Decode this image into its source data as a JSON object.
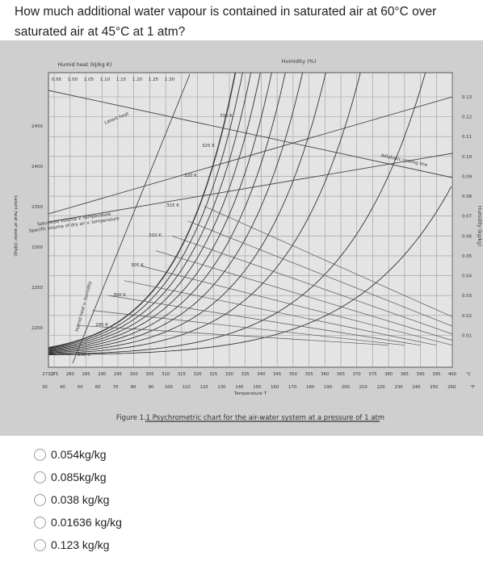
{
  "question": "How much additional water vapour is contained in saturated air at 60°C over saturated air at 45°C at 1 atm?",
  "figure": {
    "top_axis_label": "Humid heat (kJ/kg K)",
    "top_ticks": [
      "0.95",
      "1.00",
      "1.05",
      "1.10",
      "1.15",
      "1.20",
      "1.25",
      "1.30"
    ],
    "humidity_label": "Humidity (%)",
    "left_axis_label": "Latent heat of water (kJ/kg)",
    "left_ticks": [
      "2450",
      "2400",
      "2350",
      "2300",
      "2250",
      "2200"
    ],
    "right_axis_label": "Humidity (kg/kg)",
    "right_ticks": [
      "0.13",
      "0.12",
      "0.11",
      "0.10",
      "0.09",
      "0.08",
      "0.07",
      "0.06",
      "0.05",
      "0.04",
      "0.03",
      "0.02",
      "0.01"
    ],
    "kelvin_ticks": [
      "273.2",
      "275",
      "280",
      "285",
      "290",
      "295",
      "300",
      "305",
      "310",
      "315",
      "320",
      "325",
      "330",
      "335",
      "340",
      "345",
      "350",
      "355",
      "360",
      "365",
      "370",
      "375",
      "380",
      "385",
      "390",
      "395",
      "400",
      "°C"
    ],
    "fahrenheit_ticks": [
      "30",
      "40",
      "50",
      "60",
      "70",
      "80",
      "90",
      "100",
      "110",
      "120",
      "130",
      "140",
      "150",
      "160",
      "170",
      "180",
      "190",
      "200",
      "210",
      "220",
      "230",
      "240",
      "250",
      "260",
      "°F"
    ],
    "x_axis_label": "Temperature T",
    "curve_labels": [
      "Latent heat",
      "Saturated volume v. temperature",
      "Specific volume of dry air v. temperature",
      "Humid heat v. humidity",
      "Adiabatic cooling line"
    ],
    "isotherm_labels": [
      "330 K",
      "325 K",
      "320 K",
      "315 K",
      "310 K",
      "305 K",
      "300 K",
      "295 K",
      "290 K"
    ],
    "caption": "Figure 1.1 Psychrometric chart for the air-water system at a pressure of 1 atm"
  },
  "options": [
    "0.054kg/kg",
    "0.085kg/kg",
    "0.038 kg/kg",
    "0.01636 kg/kg",
    "0.123 kg/kg"
  ]
}
